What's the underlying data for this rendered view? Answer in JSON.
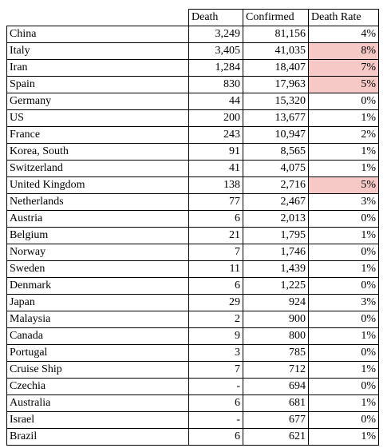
{
  "header": {
    "country": "",
    "death": "Death",
    "confirmed": "Confirmed",
    "death_rate": "Death Rate"
  },
  "highlight_color": "#f6c8c6",
  "rows": [
    {
      "country": "China",
      "death": "3,249",
      "confirmed": "81,156",
      "rate": "4%",
      "highlight": false
    },
    {
      "country": "Italy",
      "death": "3,405",
      "confirmed": "41,035",
      "rate": "8%",
      "highlight": true
    },
    {
      "country": "Iran",
      "death": "1,284",
      "confirmed": "18,407",
      "rate": "7%",
      "highlight": true
    },
    {
      "country": "Spain",
      "death": "830",
      "confirmed": "17,963",
      "rate": "5%",
      "highlight": true
    },
    {
      "country": "Germany",
      "death": "44",
      "confirmed": "15,320",
      "rate": "0%",
      "highlight": false
    },
    {
      "country": "US",
      "death": "200",
      "confirmed": "13,677",
      "rate": "1%",
      "highlight": false
    },
    {
      "country": "France",
      "death": "243",
      "confirmed": "10,947",
      "rate": "2%",
      "highlight": false
    },
    {
      "country": "Korea, South",
      "death": "91",
      "confirmed": "8,565",
      "rate": "1%",
      "highlight": false
    },
    {
      "country": "Switzerland",
      "death": "41",
      "confirmed": "4,075",
      "rate": "1%",
      "highlight": false
    },
    {
      "country": "United Kingdom",
      "death": "138",
      "confirmed": "2,716",
      "rate": "5%",
      "highlight": true
    },
    {
      "country": "Netherlands",
      "death": "77",
      "confirmed": "2,467",
      "rate": "3%",
      "highlight": false
    },
    {
      "country": "Austria",
      "death": "6",
      "confirmed": "2,013",
      "rate": "0%",
      "highlight": false
    },
    {
      "country": "Belgium",
      "death": "21",
      "confirmed": "1,795",
      "rate": "1%",
      "highlight": false
    },
    {
      "country": "Norway",
      "death": "7",
      "confirmed": "1,746",
      "rate": "0%",
      "highlight": false
    },
    {
      "country": "Sweden",
      "death": "11",
      "confirmed": "1,439",
      "rate": "1%",
      "highlight": false
    },
    {
      "country": "Denmark",
      "death": "6",
      "confirmed": "1,225",
      "rate": "0%",
      "highlight": false
    },
    {
      "country": "Japan",
      "death": "29",
      "confirmed": "924",
      "rate": "3%",
      "highlight": false
    },
    {
      "country": "Malaysia",
      "death": "2",
      "confirmed": "900",
      "rate": "0%",
      "highlight": false
    },
    {
      "country": "Canada",
      "death": "9",
      "confirmed": "800",
      "rate": "1%",
      "highlight": false
    },
    {
      "country": "Portugal",
      "death": "3",
      "confirmed": "785",
      "rate": "0%",
      "highlight": false
    },
    {
      "country": "Cruise Ship",
      "death": "7",
      "confirmed": "712",
      "rate": "1%",
      "highlight": false
    },
    {
      "country": "Czechia",
      "death": "-",
      "confirmed": "694",
      "rate": "0%",
      "highlight": false
    },
    {
      "country": "Australia",
      "death": "6",
      "confirmed": "681",
      "rate": "1%",
      "highlight": false
    },
    {
      "country": "Israel",
      "death": "-",
      "confirmed": "677",
      "rate": "0%",
      "highlight": false
    },
    {
      "country": "Brazil",
      "death": "6",
      "confirmed": "621",
      "rate": "1%",
      "highlight": false
    }
  ]
}
